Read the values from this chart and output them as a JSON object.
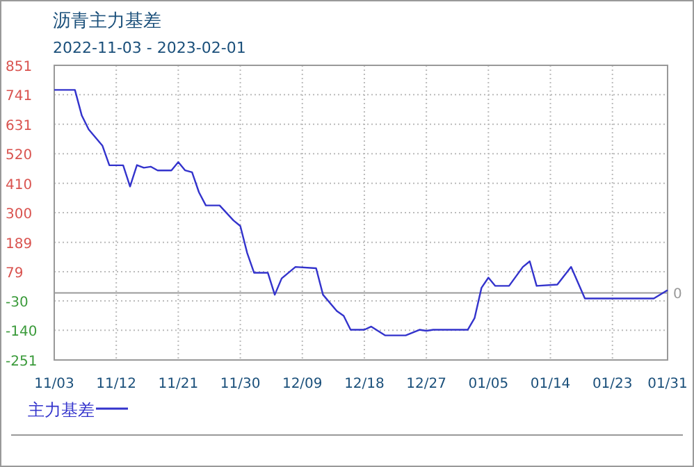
{
  "chart_data": {
    "type": "line",
    "title": "沥青主力基差",
    "subtitle": "2022-11-03 - 2023-02-01",
    "x": [
      "2022-11-03",
      "2022-11-06",
      "2022-11-07",
      "2022-11-08",
      "2022-11-10",
      "2022-11-11",
      "2022-11-13",
      "2022-11-14",
      "2022-11-15",
      "2022-11-16",
      "2022-11-17",
      "2022-11-18",
      "2022-11-20",
      "2022-11-21",
      "2022-11-22",
      "2022-11-23",
      "2022-11-24",
      "2022-11-25",
      "2022-11-27",
      "2022-11-29",
      "2022-11-30",
      "2022-12-01",
      "2022-12-02",
      "2022-12-04",
      "2022-12-05",
      "2022-12-06",
      "2022-12-08",
      "2022-12-11",
      "2022-12-12",
      "2022-12-14",
      "2022-12-15",
      "2022-12-16",
      "2022-12-18",
      "2022-12-19",
      "2022-12-21",
      "2022-12-24",
      "2022-12-26",
      "2022-12-27",
      "2022-12-28",
      "2023-01-02",
      "2023-01-03",
      "2023-01-04",
      "2023-01-05",
      "2023-01-06",
      "2023-01-08",
      "2023-01-10",
      "2023-01-11",
      "2023-01-12",
      "2023-01-15",
      "2023-01-17",
      "2023-01-19",
      "2023-01-29",
      "2023-01-31"
    ],
    "series": [
      {
        "name": "主力基差",
        "color": "#3333cc",
        "values": [
          759,
          759,
          663,
          611,
          550,
          477,
          477,
          398,
          478,
          468,
          472,
          458,
          458,
          489,
          458,
          451,
          376,
          327,
          327,
          271,
          250,
          149,
          75,
          75,
          -7,
          54,
          97,
          92,
          -7,
          -68,
          -86,
          -138,
          -138,
          -126,
          -159,
          -159,
          -138,
          -142,
          -138,
          -138,
          -94,
          19,
          57,
          26,
          26,
          97,
          118,
          26,
          31,
          97,
          -21,
          -21,
          10
        ]
      }
    ],
    "xlim": [
      "2022-11-03",
      "2023-01-31"
    ],
    "xticks": [
      {
        "value": "2022-11-03",
        "label": "11/03"
      },
      {
        "value": "2022-11-12",
        "label": "11/12"
      },
      {
        "value": "2022-11-21",
        "label": "11/21"
      },
      {
        "value": "2022-11-30",
        "label": "11/30"
      },
      {
        "value": "2022-12-09",
        "label": "12/09"
      },
      {
        "value": "2022-12-18",
        "label": "12/18"
      },
      {
        "value": "2022-12-27",
        "label": "12/27"
      },
      {
        "value": "2023-01-05",
        "label": "01/05"
      },
      {
        "value": "2023-01-14",
        "label": "01/14"
      },
      {
        "value": "2023-01-23",
        "label": "01/23"
      },
      {
        "value": "2023-01-31",
        "label": "01/31"
      }
    ],
    "ylim": [
      -251,
      851
    ],
    "yticks": [
      -251,
      -140,
      -30,
      79,
      189,
      300,
      410,
      520,
      631,
      741,
      851
    ],
    "ref_lines": [
      {
        "axis": "y",
        "value": 0,
        "label": "0",
        "color": "#999999"
      }
    ],
    "grid": true,
    "legend": "bottom left",
    "line_style": "solid",
    "marker": "none"
  }
}
